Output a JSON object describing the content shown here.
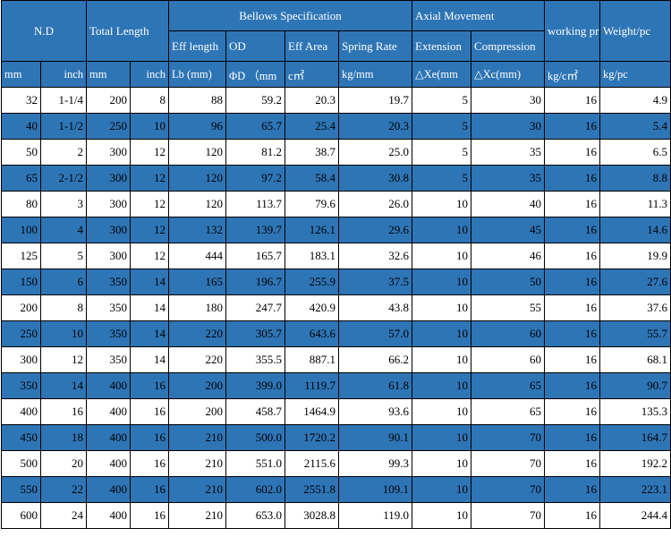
{
  "headers": {
    "nd": "N.D",
    "total_length": "Total Length",
    "bellows_spec": "Bellows Specification",
    "axial_movement": "Axial Movement",
    "working_pressure": "working pressure",
    "weight": "Weight/pc",
    "eff_length": "Eff length",
    "od": "OD",
    "eff_area": "Eff Area",
    "spring_rate": "Spring Rate",
    "extension": "Extension",
    "compression": "Compression"
  },
  "units": {
    "nd_mm": "mm",
    "nd_inch": "inch",
    "tl_mm": "mm",
    "tl_inch": "inch",
    "lb": "Lb (mm)",
    "od": "ΦD （mm",
    "area": "c㎡",
    "spring": "kg/mm",
    "xe": "△Xe(mm",
    "xc": "△Xc(mm)",
    "pressure": "kg/c㎡",
    "weight": "kg/pc"
  },
  "style": {
    "header_bg": "#2e75b6",
    "stripe_bg": "#2e75b6",
    "header_text": "#ffffff"
  },
  "rows": [
    [
      "32",
      "1-1/4",
      "200",
      "8",
      "88",
      "59.2",
      "20.3",
      "19.7",
      "5",
      "30",
      "16",
      "4.9"
    ],
    [
      "40",
      "1-1/2",
      "250",
      "10",
      "96",
      "65.7",
      "25.4",
      "20.3",
      "5",
      "30",
      "16",
      "5.4"
    ],
    [
      "50",
      "2",
      "300",
      "12",
      "120",
      "81.2",
      "38.7",
      "25.0",
      "5",
      "35",
      "16",
      "6.5"
    ],
    [
      "65",
      "2-1/2",
      "300",
      "12",
      "120",
      "97.2",
      "58.4",
      "30.8",
      "5",
      "35",
      "16",
      "8.8"
    ],
    [
      "80",
      "3",
      "300",
      "12",
      "120",
      "113.7",
      "79.6",
      "26.0",
      "10",
      "40",
      "16",
      "11.3"
    ],
    [
      "100",
      "4",
      "300",
      "12",
      "132",
      "139.7",
      "126.1",
      "29.6",
      "10",
      "45",
      "16",
      "14.6"
    ],
    [
      "125",
      "5",
      "300",
      "12",
      "444",
      "165.7",
      "183.1",
      "32.6",
      "10",
      "46",
      "16",
      "19.9"
    ],
    [
      "150",
      "6",
      "350",
      "14",
      "165",
      "196.7",
      "255.9",
      "37.5",
      "10",
      "50",
      "16",
      "27.6"
    ],
    [
      "200",
      "8",
      "350",
      "14",
      "180",
      "247.7",
      "420.9",
      "43.8",
      "10",
      "55",
      "16",
      "37.6"
    ],
    [
      "250",
      "10",
      "350",
      "14",
      "220",
      "305.7",
      "643.6",
      "57.0",
      "10",
      "60",
      "16",
      "55.7"
    ],
    [
      "300",
      "12",
      "350",
      "14",
      "220",
      "355.5",
      "887.1",
      "66.2",
      "10",
      "60",
      "16",
      "68.1"
    ],
    [
      "350",
      "14",
      "400",
      "16",
      "200",
      "399.0",
      "1119.7",
      "61.8",
      "10",
      "65",
      "16",
      "90.7"
    ],
    [
      "400",
      "16",
      "400",
      "16",
      "200",
      "458.7",
      "1464.9",
      "93.6",
      "10",
      "65",
      "16",
      "135.3"
    ],
    [
      "450",
      "18",
      "400",
      "16",
      "210",
      "500.0",
      "1720.2",
      "90.1",
      "10",
      "70",
      "16",
      "164.7"
    ],
    [
      "500",
      "20",
      "400",
      "16",
      "210",
      "551.0",
      "2115.6",
      "99.3",
      "10",
      "70",
      "16",
      "192.2"
    ],
    [
      "550",
      "22",
      "400",
      "16",
      "210",
      "602.0",
      "2551.8",
      "109.1",
      "10",
      "70",
      "16",
      "223.1"
    ],
    [
      "600",
      "24",
      "400",
      "16",
      "210",
      "653.0",
      "3028.8",
      "119.0",
      "10",
      "70",
      "16",
      "244.4"
    ]
  ]
}
